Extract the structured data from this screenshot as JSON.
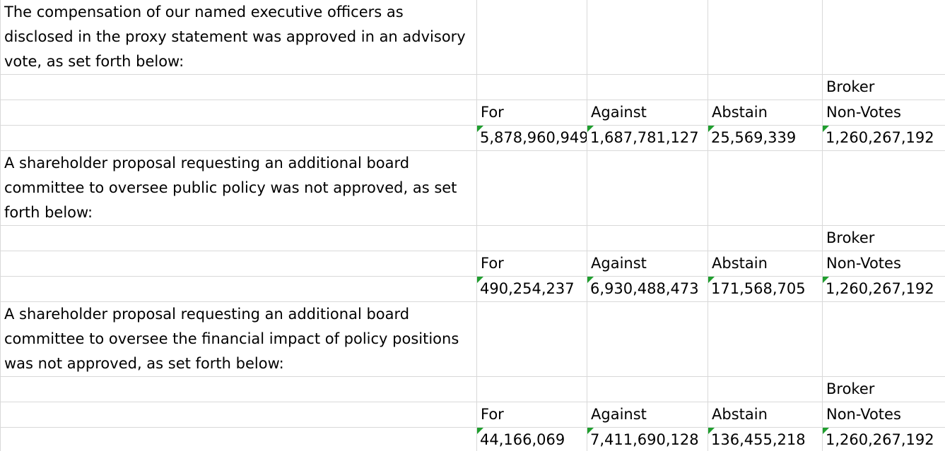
{
  "sections": [
    {
      "description": "The compensation of our named executive officers as disclosed in the proxy statement was approved in an advisory vote, as set forth below:",
      "header_line1": [
        "",
        "",
        "",
        "Broker"
      ],
      "header_line2": [
        "For",
        "Against",
        "Abstain",
        "Non-Votes"
      ],
      "values": [
        "5,878,960,949",
        "1,687,781,127",
        "25,569,339",
        "1,260,267,192"
      ]
    },
    {
      "description": "A shareholder proposal requesting an additional board committee to oversee public policy was not approved, as set forth below:",
      "header_line1": [
        "",
        "",
        "",
        "Broker"
      ],
      "header_line2": [
        "For",
        "Against",
        "Abstain",
        "Non-Votes"
      ],
      "values": [
        "490,254,237",
        "6,930,488,473",
        "171,568,705",
        "1,260,267,192"
      ]
    },
    {
      "description": "A shareholder proposal requesting an additional board committee to oversee the financial impact of policy positions was not approved, as set forth below:",
      "header_line1": [
        "",
        "",
        "",
        "Broker"
      ],
      "header_line2": [
        "For",
        "Against",
        "Abstain",
        "Non-Votes"
      ],
      "values": [
        "44,166,069",
        "7,411,690,128",
        "136,455,218",
        "1,260,267,192"
      ]
    }
  ],
  "colors": {
    "gridline": "#d9d9d9",
    "error_indicator": "#1f9e2e"
  }
}
